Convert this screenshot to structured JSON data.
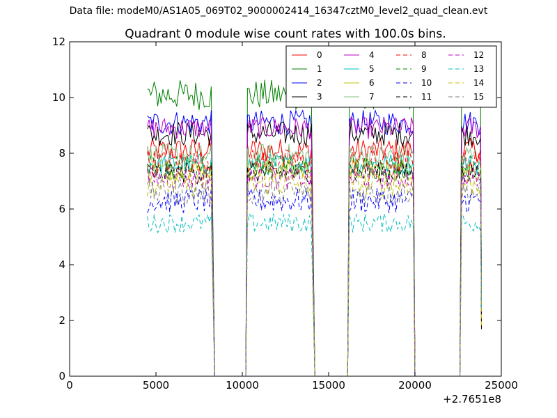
{
  "suptitle": "Data file: modeM0/AS1A05_069T02_9000002414_16347cztM0_level2_quad_clean.evt",
  "chart_data": {
    "type": "line",
    "title": "Quadrant 0 module wise count rates with 100.0s bins.",
    "xlabel": "",
    "ylabel": "",
    "xlim": [
      0,
      25000
    ],
    "ylim": [
      0,
      12
    ],
    "x_offset_label": "+2.7651e8",
    "x_ticks": [
      0,
      5000,
      10000,
      15000,
      20000,
      25000
    ],
    "x_tick_labels": [
      "0",
      "5000",
      "10000",
      "15000",
      "20000",
      "25000"
    ],
    "y_ticks": [
      0,
      2,
      4,
      6,
      8,
      10,
      12
    ],
    "y_tick_labels": [
      "0",
      "2",
      "4",
      "6",
      "8",
      "10",
      "12"
    ],
    "legend_position": "top-right",
    "segments": [
      {
        "start": 4500,
        "end": 8200,
        "drop_to": 8400
      },
      {
        "start": 10300,
        "end": 14000,
        "drop_to": 14200
      },
      {
        "start": 16200,
        "end": 19900,
        "drop_to": 20000
      },
      {
        "start": 22700,
        "end": 23800,
        "drop_to": 23850
      }
    ],
    "series": [
      {
        "name": "0",
        "color": "#ff0000",
        "dash": "solid",
        "level": 8.1,
        "noise": 0.45
      },
      {
        "name": "1",
        "color": "#008000",
        "dash": "solid",
        "level": 10.1,
        "noise": 0.55
      },
      {
        "name": "2",
        "color": "#0000ff",
        "dash": "solid",
        "level": 9.1,
        "noise": 0.45
      },
      {
        "name": "3",
        "color": "#000000",
        "dash": "solid",
        "level": 8.7,
        "noise": 0.45
      },
      {
        "name": "4",
        "color": "#c000c0",
        "dash": "solid",
        "level": 8.9,
        "noise": 0.4
      },
      {
        "name": "5",
        "color": "#00bfbf",
        "dash": "solid",
        "level": 7.6,
        "noise": 0.4
      },
      {
        "name": "6",
        "color": "#bfbf00",
        "dash": "solid",
        "level": 7.4,
        "noise": 0.4
      },
      {
        "name": "7",
        "color": "#80c080",
        "dash": "solid",
        "level": 7.9,
        "noise": 0.45
      },
      {
        "name": "8",
        "color": "#ff0000",
        "dash": "dashed",
        "level": 7.7,
        "noise": 0.45
      },
      {
        "name": "9",
        "color": "#008000",
        "dash": "dashed",
        "level": 7.5,
        "noise": 0.45
      },
      {
        "name": "10",
        "color": "#0000ff",
        "dash": "dashed",
        "level": 6.3,
        "noise": 0.45
      },
      {
        "name": "11",
        "color": "#000000",
        "dash": "dashed",
        "level": 7.3,
        "noise": 0.4
      },
      {
        "name": "12",
        "color": "#c000c0",
        "dash": "dashed",
        "level": 7.1,
        "noise": 0.4
      },
      {
        "name": "13",
        "color": "#00bfbf",
        "dash": "dashed",
        "level": 5.5,
        "noise": 0.35
      },
      {
        "name": "14",
        "color": "#bfbf00",
        "dash": "dashed",
        "level": 6.9,
        "noise": 0.45
      },
      {
        "name": "15",
        "color": "#808080",
        "dash": "dashed",
        "level": 6.6,
        "noise": 0.45
      }
    ]
  }
}
